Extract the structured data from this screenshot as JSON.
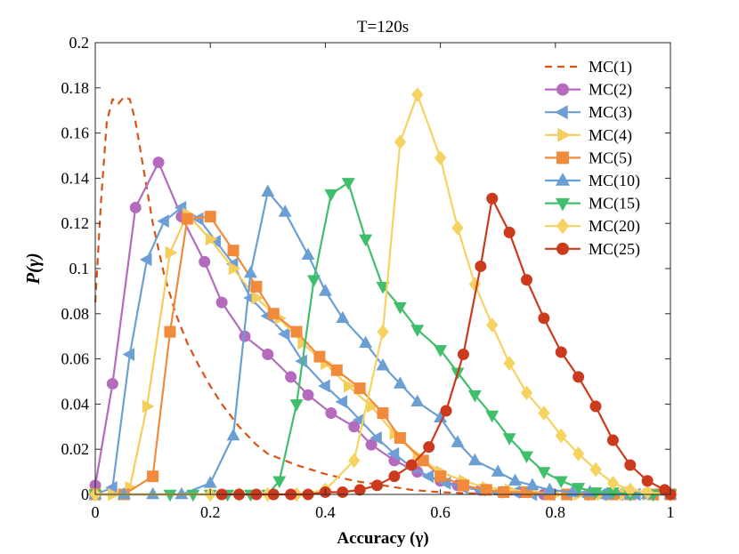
{
  "chart_data": {
    "type": "line",
    "title": "T=120s",
    "xlabel": "Accuracy (γ)",
    "ylabel": "P(γ)",
    "xlim": [
      0,
      1
    ],
    "ylim": [
      0,
      0.2
    ],
    "xticks": [
      "0",
      "0.2",
      "0.4",
      "0.6",
      "0.8",
      "1"
    ],
    "yticks": [
      "0",
      "0.02",
      "0.04",
      "0.06",
      "0.08",
      "0.1",
      "0.12",
      "0.14",
      "0.16",
      "0.18",
      "0.2"
    ],
    "grid": false,
    "legend_position": "top-right",
    "series": [
      {
        "name": "MC(1)",
        "color": "#d95319",
        "marker": "none",
        "dash": true,
        "points": [
          [
            0.0,
            0.085
          ],
          [
            0.01,
            0.13
          ],
          [
            0.02,
            0.165
          ],
          [
            0.03,
            0.175
          ],
          [
            0.04,
            0.173
          ],
          [
            0.05,
            0.176
          ],
          [
            0.06,
            0.175
          ],
          [
            0.07,
            0.165
          ],
          [
            0.08,
            0.15
          ],
          [
            0.1,
            0.12
          ],
          [
            0.12,
            0.097
          ],
          [
            0.14,
            0.08
          ],
          [
            0.16,
            0.067
          ],
          [
            0.18,
            0.057
          ],
          [
            0.2,
            0.048
          ],
          [
            0.22,
            0.04
          ],
          [
            0.25,
            0.03
          ],
          [
            0.28,
            0.022
          ],
          [
            0.3,
            0.018
          ],
          [
            0.35,
            0.013
          ],
          [
            0.4,
            0.009
          ],
          [
            0.45,
            0.006
          ],
          [
            0.5,
            0.004
          ],
          [
            0.55,
            0.002
          ],
          [
            0.6,
            0.001
          ],
          [
            0.7,
            0.0
          ],
          [
            0.8,
            0.0
          ],
          [
            0.9,
            0.0
          ],
          [
            1.0,
            0.0
          ]
        ]
      },
      {
        "name": "MC(2)",
        "color": "#b46bbd",
        "marker": "circle",
        "points": [
          [
            0.0,
            0.004
          ],
          [
            0.03,
            0.049
          ],
          [
            0.07,
            0.127
          ],
          [
            0.11,
            0.147
          ],
          [
            0.15,
            0.123
          ],
          [
            0.19,
            0.103
          ],
          [
            0.22,
            0.085
          ],
          [
            0.26,
            0.07
          ],
          [
            0.3,
            0.062
          ],
          [
            0.34,
            0.052
          ],
          [
            0.37,
            0.044
          ],
          [
            0.41,
            0.036
          ],
          [
            0.45,
            0.03
          ],
          [
            0.48,
            0.022
          ],
          [
            0.52,
            0.015
          ],
          [
            0.56,
            0.01
          ],
          [
            0.6,
            0.006
          ],
          [
            0.63,
            0.004
          ],
          [
            0.67,
            0.002
          ],
          [
            0.71,
            0.001
          ],
          [
            0.74,
            0.001
          ],
          [
            0.78,
            0.0
          ],
          [
            0.82,
            0.0
          ],
          [
            0.86,
            0.0
          ],
          [
            0.89,
            0.0
          ],
          [
            0.93,
            0.0
          ],
          [
            0.97,
            0.0
          ],
          [
            1.0,
            0.0
          ]
        ]
      },
      {
        "name": "MC(3)",
        "color": "#6d9fd4",
        "marker": "triangle-left",
        "points": [
          [
            0.0,
            0.0
          ],
          [
            0.03,
            0.003
          ],
          [
            0.06,
            0.062
          ],
          [
            0.09,
            0.104
          ],
          [
            0.12,
            0.121
          ],
          [
            0.15,
            0.127
          ],
          [
            0.18,
            0.122
          ],
          [
            0.21,
            0.112
          ],
          [
            0.24,
            0.102
          ],
          [
            0.27,
            0.087
          ],
          [
            0.3,
            0.079
          ],
          [
            0.33,
            0.071
          ],
          [
            0.36,
            0.059
          ],
          [
            0.4,
            0.048
          ],
          [
            0.43,
            0.041
          ],
          [
            0.46,
            0.033
          ],
          [
            0.49,
            0.025
          ],
          [
            0.52,
            0.018
          ],
          [
            0.55,
            0.012
          ],
          [
            0.58,
            0.008
          ],
          [
            0.61,
            0.005
          ],
          [
            0.64,
            0.003
          ],
          [
            0.67,
            0.002
          ],
          [
            0.7,
            0.001
          ],
          [
            0.73,
            0.001
          ],
          [
            0.76,
            0.0
          ],
          [
            0.79,
            0.0
          ],
          [
            0.82,
            0.0
          ],
          [
            0.85,
            0.0
          ],
          [
            0.88,
            0.0
          ],
          [
            0.91,
            0.0
          ],
          [
            0.94,
            0.0
          ],
          [
            0.97,
            0.0
          ],
          [
            1.0,
            0.0
          ]
        ]
      },
      {
        "name": "MC(4)",
        "color": "#f5cd5c",
        "marker": "triangle-right",
        "points": [
          [
            0.0,
            0.0
          ],
          [
            0.03,
            0.0
          ],
          [
            0.06,
            0.003
          ],
          [
            0.09,
            0.039
          ],
          [
            0.13,
            0.107
          ],
          [
            0.16,
            0.124
          ],
          [
            0.2,
            0.113
          ],
          [
            0.24,
            0.1
          ],
          [
            0.28,
            0.087
          ],
          [
            0.32,
            0.078
          ],
          [
            0.36,
            0.067
          ],
          [
            0.4,
            0.058
          ],
          [
            0.44,
            0.048
          ],
          [
            0.48,
            0.039
          ],
          [
            0.52,
            0.027
          ],
          [
            0.56,
            0.017
          ],
          [
            0.6,
            0.01
          ],
          [
            0.64,
            0.006
          ],
          [
            0.68,
            0.003
          ],
          [
            0.72,
            0.002
          ],
          [
            0.76,
            0.001
          ],
          [
            0.8,
            0.0
          ],
          [
            0.84,
            0.0
          ],
          [
            0.88,
            0.0
          ],
          [
            0.92,
            0.0
          ],
          [
            0.96,
            0.0
          ],
          [
            1.0,
            0.0
          ]
        ]
      },
      {
        "name": "MC(5)",
        "color": "#f28a3c",
        "marker": "square",
        "points": [
          [
            0.0,
            0.0
          ],
          [
            0.05,
            0.0
          ],
          [
            0.1,
            0.008
          ],
          [
            0.13,
            0.072
          ],
          [
            0.16,
            0.122
          ],
          [
            0.2,
            0.123
          ],
          [
            0.24,
            0.108
          ],
          [
            0.28,
            0.092
          ],
          [
            0.31,
            0.08
          ],
          [
            0.35,
            0.072
          ],
          [
            0.39,
            0.061
          ],
          [
            0.42,
            0.055
          ],
          [
            0.46,
            0.047
          ],
          [
            0.5,
            0.036
          ],
          [
            0.53,
            0.025
          ],
          [
            0.57,
            0.015
          ],
          [
            0.6,
            0.008
          ],
          [
            0.64,
            0.004
          ],
          [
            0.68,
            0.002
          ],
          [
            0.71,
            0.001
          ],
          [
            0.75,
            0.001
          ],
          [
            0.79,
            0.0
          ],
          [
            0.82,
            0.0
          ],
          [
            0.86,
            0.0
          ],
          [
            0.9,
            0.0
          ],
          [
            0.93,
            0.0
          ],
          [
            0.97,
            0.0
          ],
          [
            1.0,
            0.0
          ]
        ]
      },
      {
        "name": "MC(10)",
        "color": "#6a9fd4",
        "marker": "triangle-up",
        "points": [
          [
            0.0,
            0.0
          ],
          [
            0.05,
            0.0
          ],
          [
            0.1,
            0.0
          ],
          [
            0.15,
            0.0
          ],
          [
            0.2,
            0.005
          ],
          [
            0.24,
            0.026
          ],
          [
            0.27,
            0.098
          ],
          [
            0.3,
            0.134
          ],
          [
            0.33,
            0.125
          ],
          [
            0.37,
            0.106
          ],
          [
            0.4,
            0.09
          ],
          [
            0.43,
            0.078
          ],
          [
            0.47,
            0.067
          ],
          [
            0.5,
            0.057
          ],
          [
            0.53,
            0.049
          ],
          [
            0.56,
            0.041
          ],
          [
            0.6,
            0.034
          ],
          [
            0.63,
            0.023
          ],
          [
            0.66,
            0.015
          ],
          [
            0.7,
            0.01
          ],
          [
            0.73,
            0.006
          ],
          [
            0.76,
            0.004
          ],
          [
            0.79,
            0.002
          ],
          [
            0.83,
            0.001
          ],
          [
            0.86,
            0.001
          ],
          [
            0.89,
            0.0
          ],
          [
            0.93,
            0.0
          ],
          [
            0.96,
            0.0
          ],
          [
            1.0,
            0.0
          ]
        ]
      },
      {
        "name": "MC(15)",
        "color": "#3fbf6b",
        "marker": "triangle-down",
        "points": [
          [
            0.0,
            0.0
          ],
          [
            0.13,
            0.0
          ],
          [
            0.17,
            0.0
          ],
          [
            0.2,
            0.0
          ],
          [
            0.23,
            0.0
          ],
          [
            0.27,
            0.0
          ],
          [
            0.3,
            0.0
          ],
          [
            0.32,
            0.006
          ],
          [
            0.35,
            0.04
          ],
          [
            0.38,
            0.095
          ],
          [
            0.41,
            0.133
          ],
          [
            0.44,
            0.138
          ],
          [
            0.47,
            0.113
          ],
          [
            0.5,
            0.092
          ],
          [
            0.53,
            0.083
          ],
          [
            0.56,
            0.073
          ],
          [
            0.6,
            0.064
          ],
          [
            0.63,
            0.054
          ],
          [
            0.66,
            0.044
          ],
          [
            0.69,
            0.035
          ],
          [
            0.72,
            0.025
          ],
          [
            0.75,
            0.017
          ],
          [
            0.78,
            0.01
          ],
          [
            0.81,
            0.006
          ],
          [
            0.84,
            0.003
          ],
          [
            0.87,
            0.001
          ],
          [
            0.9,
            0.001
          ],
          [
            0.93,
            0.0
          ],
          [
            0.97,
            0.0
          ],
          [
            1.0,
            0.0
          ]
        ]
      },
      {
        "name": "MC(20)",
        "color": "#f6d260",
        "marker": "diamond",
        "points": [
          [
            0.0,
            0.0
          ],
          [
            0.2,
            0.0
          ],
          [
            0.25,
            0.0
          ],
          [
            0.3,
            0.0
          ],
          [
            0.35,
            0.0
          ],
          [
            0.4,
            0.002
          ],
          [
            0.45,
            0.015
          ],
          [
            0.5,
            0.072
          ],
          [
            0.53,
            0.156
          ],
          [
            0.56,
            0.177
          ],
          [
            0.6,
            0.149
          ],
          [
            0.63,
            0.118
          ],
          [
            0.66,
            0.093
          ],
          [
            0.69,
            0.075
          ],
          [
            0.72,
            0.058
          ],
          [
            0.75,
            0.045
          ],
          [
            0.78,
            0.036
          ],
          [
            0.81,
            0.026
          ],
          [
            0.84,
            0.018
          ],
          [
            0.87,
            0.011
          ],
          [
            0.9,
            0.005
          ],
          [
            0.93,
            0.002
          ],
          [
            0.96,
            0.001
          ],
          [
            1.0,
            0.0
          ]
        ]
      },
      {
        "name": "MC(25)",
        "color": "#cc3a1e",
        "marker": "circle",
        "points": [
          [
            0.22,
            0.0
          ],
          [
            0.25,
            0.0
          ],
          [
            0.28,
            0.0
          ],
          [
            0.31,
            0.0
          ],
          [
            0.34,
            0.0
          ],
          [
            0.37,
            0.0
          ],
          [
            0.4,
            0.001
          ],
          [
            0.43,
            0.001
          ],
          [
            0.46,
            0.002
          ],
          [
            0.49,
            0.004
          ],
          [
            0.52,
            0.008
          ],
          [
            0.55,
            0.013
          ],
          [
            0.58,
            0.021
          ],
          [
            0.61,
            0.037
          ],
          [
            0.64,
            0.062
          ],
          [
            0.67,
            0.101
          ],
          [
            0.69,
            0.131
          ],
          [
            0.72,
            0.116
          ],
          [
            0.75,
            0.095
          ],
          [
            0.78,
            0.078
          ],
          [
            0.81,
            0.063
          ],
          [
            0.84,
            0.052
          ],
          [
            0.87,
            0.039
          ],
          [
            0.9,
            0.024
          ],
          [
            0.93,
            0.013
          ],
          [
            0.96,
            0.006
          ],
          [
            0.99,
            0.002
          ],
          [
            1.0,
            0.0
          ]
        ]
      }
    ]
  }
}
